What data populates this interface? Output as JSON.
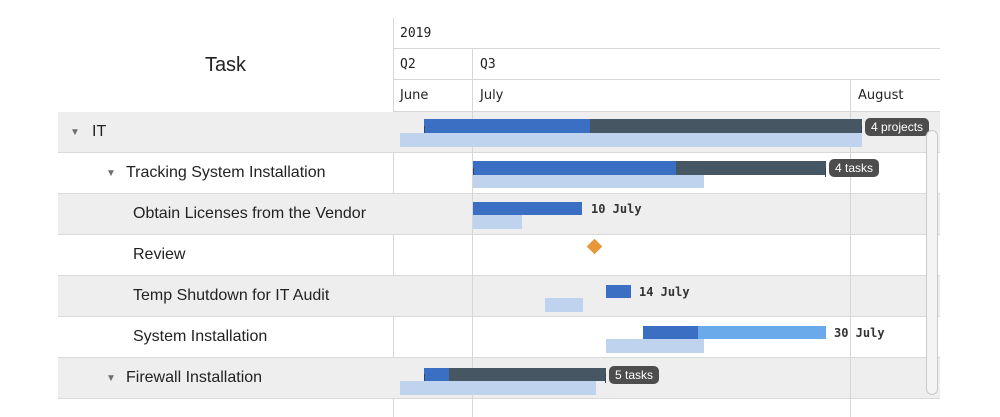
{
  "left_header": {
    "title": "Task"
  },
  "timeline_header": {
    "year": "2019",
    "quarters": [
      "Q2",
      "Q3"
    ],
    "months": [
      "June",
      "July",
      "August"
    ]
  },
  "tasks": [
    {
      "label": "IT",
      "expanded": true,
      "level": 0
    },
    {
      "label": "Tracking System Installation",
      "expanded": true,
      "level": 1
    },
    {
      "label": "Obtain Licenses from the Vendor",
      "level": 2
    },
    {
      "label": "Review",
      "level": 2
    },
    {
      "label": "Temp Shutdown for IT Audit",
      "level": 2
    },
    {
      "label": "System Installation",
      "level": 2
    },
    {
      "label": "Firewall Installation",
      "expanded": true,
      "level": 1
    }
  ],
  "bar_labels": {
    "it_summary": "4 projects",
    "tracking_summary": "4 tasks",
    "obtain_licenses": "10 July",
    "temp_shutdown": "14 July",
    "system_installation": "30 July",
    "firewall_summary": "5 tasks"
  },
  "colors": {
    "summary_progress": "#3a6fc4",
    "summary_remaining": "#465663",
    "baseline": "#bfd3ee",
    "task_progress": "#3a6fc4",
    "task_remaining": "#6aaaea",
    "milestone": "#e8973a",
    "row_shade": "#eeeeee"
  },
  "icons": [
    "expand-triangle-icon",
    "milestone-diamond-icon"
  ]
}
